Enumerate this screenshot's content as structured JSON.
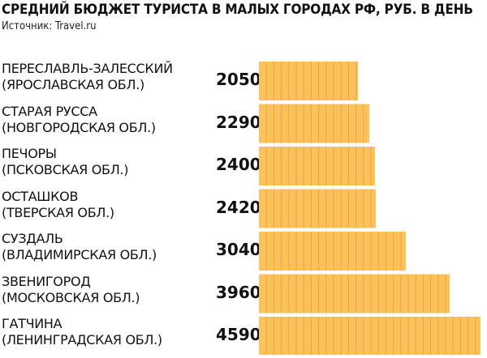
{
  "title": "СРЕДНИЙ БЮДЖЕТ ТУРИСТА В МАЛЫХ ГОРОДАХ РФ, РУБ. В ДЕНЬ",
  "source": "Источник: Travel.ru",
  "bar_color": "#FBC15E",
  "bar_stripe_color": "#F5A623",
  "chart_data": {
    "type": "bar",
    "orientation": "horizontal",
    "title": "СРЕДНИЙ БЮДЖЕТ ТУРИСТА В МАЛЫХ ГОРОДАХ РФ, РУБ. В ДЕНЬ",
    "categories": [
      {
        "city": "ПЕРЕСЛАВЛЬ-ЗАЛЕССКИЙ",
        "region": "(ЯРОСЛАВСКАЯ ОБЛ.)"
      },
      {
        "city": "СТАРАЯ РУССА",
        "region": "(НОВГОРОДСКАЯ ОБЛ.)"
      },
      {
        "city": "ПЕЧОРЫ",
        "region": "(ПСКОВСКАЯ ОБЛ.)"
      },
      {
        "city": "ОСТАШКОВ",
        "region": "(ТВЕРСКАЯ ОБЛ.)"
      },
      {
        "city": "СУЗДАЛЬ",
        "region": "(ВЛАДИМИРСКАЯ ОБЛ.)"
      },
      {
        "city": "ЗВЕНИГОРОД",
        "region": "(МОСКОВСКАЯ ОБЛ.)"
      },
      {
        "city": "ГАТЧИНА",
        "region": "(ЛЕНИНГРАДСКАЯ ОБЛ.)"
      }
    ],
    "values": [
      2050,
      2290,
      2400,
      2420,
      3040,
      3960,
      4590
    ],
    "value_labels": [
      "2050",
      "2290",
      "2400",
      "2420",
      "3040",
      "3960",
      "4590"
    ],
    "xlim": [
      0,
      4600
    ],
    "grid": false,
    "legend": false
  }
}
